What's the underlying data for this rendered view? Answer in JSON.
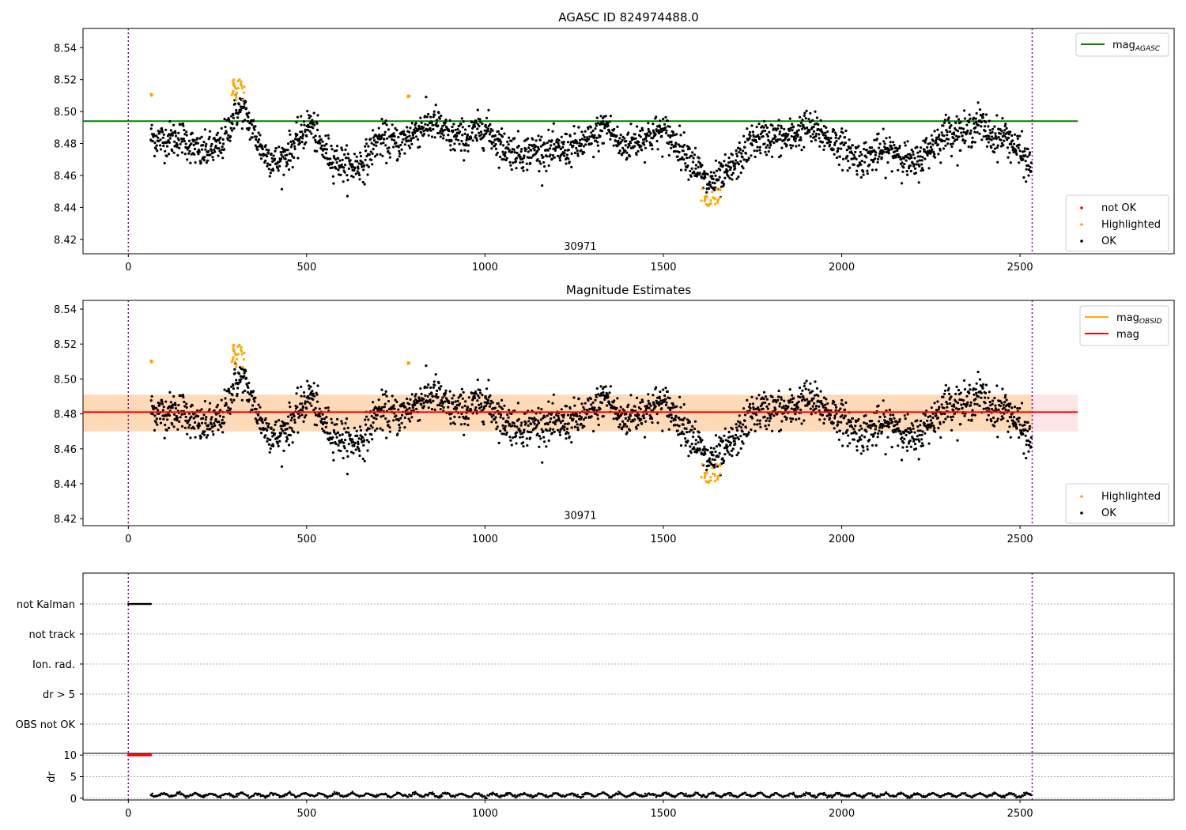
{
  "chart_data": [
    {
      "type": "scatter",
      "title": "AGASC ID 824974488.0",
      "xlim": [
        -127,
        2932
      ],
      "ylim": [
        8.411,
        8.552
      ],
      "xticks": [
        0,
        500,
        1000,
        1500,
        2000,
        2500
      ],
      "yticks": [
        8.42,
        8.44,
        8.46,
        8.48,
        8.5,
        8.52,
        8.54
      ],
      "vlines": [
        0,
        2534
      ],
      "hline": {
        "value": 8.494,
        "x_range": [
          -127,
          2662
        ],
        "color": "#008000"
      },
      "annotation": {
        "text": "30971",
        "x": 1267,
        "y": 8.416
      },
      "legend_top": {
        "placement": "upper right",
        "entries": [
          {
            "label": "mag",
            "sub": "AGASC",
            "color": "#008000"
          }
        ]
      },
      "legend_bottom": {
        "placement": "lower right",
        "entries": [
          {
            "label": "not OK",
            "color": "#ff0000"
          },
          {
            "label": "Highlighted",
            "color": "#ffa500"
          },
          {
            "label": "OK",
            "color": "#000000"
          }
        ]
      },
      "series_description": {
        "ok_points": {
          "x_range": [
            63,
            2532
          ],
          "y_range": [
            8.455,
            8.508
          ],
          "approx_count": 2400
        },
        "highlighted_clusters": [
          {
            "x_range": [
              63,
              67
            ],
            "y_range": [
              8.506,
              8.512
            ]
          },
          {
            "x_range": [
              290,
              330
            ],
            "y_range": [
              8.507,
              8.52
            ]
          },
          {
            "x_range": [
              780,
              790
            ],
            "y_range": [
              8.509,
              8.51
            ]
          },
          {
            "x_range": [
              1605,
              1660
            ],
            "y_range": [
              8.441,
              8.452
            ]
          }
        ]
      }
    },
    {
      "type": "scatter",
      "title": "Magnitude Estimates",
      "xlim": [
        -127,
        2932
      ],
      "ylim": [
        8.416,
        8.545
      ],
      "xticks": [
        0,
        500,
        1000,
        1500,
        2000,
        2500
      ],
      "yticks": [
        8.42,
        8.44,
        8.46,
        8.48,
        8.5,
        8.52,
        8.54
      ],
      "vlines": [
        0,
        2534
      ],
      "hline_obsid": {
        "value": 8.481,
        "x_range": [
          -127,
          2534
        ],
        "color": "#ffa500"
      },
      "hline_mag": {
        "value": 8.481,
        "x_range": [
          -127,
          2662
        ],
        "color": "#ff0000"
      },
      "band_obsid": {
        "range": [
          8.47,
          8.491
        ],
        "x_range": [
          -127,
          2534
        ],
        "color": "#ffdab9"
      },
      "band_mag": {
        "range": [
          8.47,
          8.491
        ],
        "x_range": [
          -127,
          2662
        ],
        "color": "#ffe4e8"
      },
      "annotation": {
        "text": "30971",
        "x": 1267,
        "y": 8.422
      },
      "legend_top": {
        "placement": "upper right",
        "entries": [
          {
            "label": "mag",
            "sub": "OBSID",
            "color": "#ffa500"
          },
          {
            "label": "mag",
            "sub": "",
            "color": "#ff0000"
          }
        ]
      },
      "legend_bottom": {
        "placement": "lower right",
        "entries": [
          {
            "label": "Highlighted",
            "color": "#ffa500"
          },
          {
            "label": "OK",
            "color": "#000000"
          }
        ]
      }
    },
    {
      "type": "scatter",
      "xlim": [
        -127,
        2932
      ],
      "categories": [
        "not Kalman",
        "not track",
        "Ion. rad.",
        "dr > 5",
        "OBS not OK"
      ],
      "flag_points": [
        {
          "category": "not Kalman",
          "x_range": [
            0,
            63
          ]
        }
      ],
      "vlines": [
        0,
        2534
      ],
      "dr_panel": {
        "ylabel": "dr",
        "yticks": [
          0,
          5,
          10
        ],
        "ylim": [
          -0.4,
          10.4
        ],
        "red_points": {
          "x_range": [
            0,
            63
          ],
          "value": 10
        },
        "black_points": {
          "x_range": [
            63,
            2532
          ],
          "value_range": [
            0.2,
            1.3
          ]
        }
      },
      "xticks": [
        0,
        500,
        1000,
        1500,
        2000,
        2500
      ]
    }
  ]
}
